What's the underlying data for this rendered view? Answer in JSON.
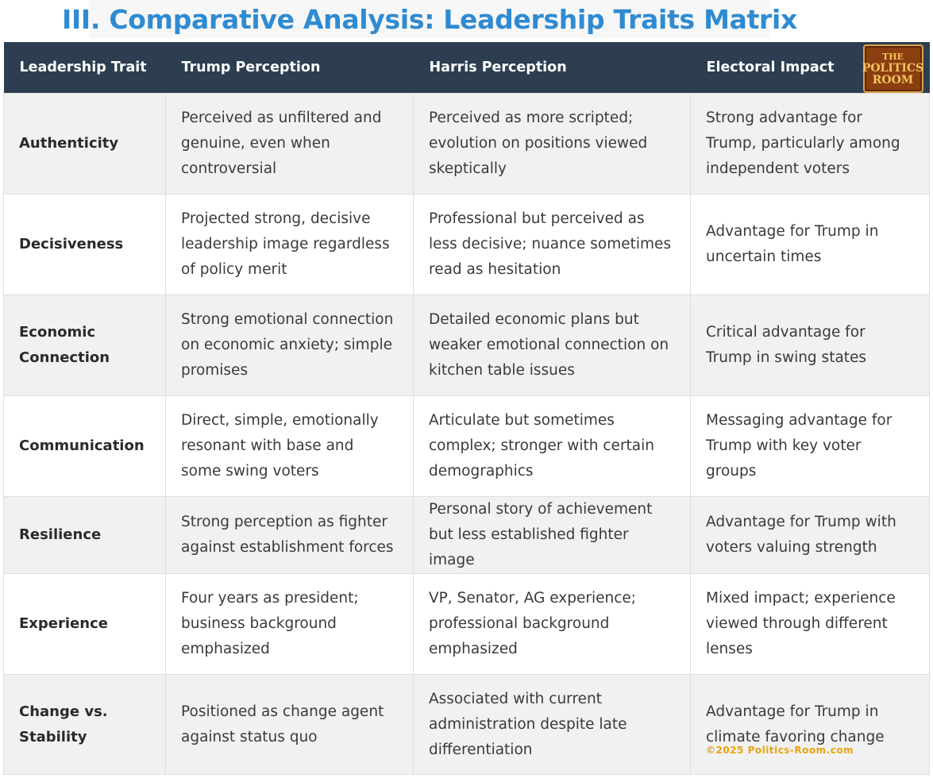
{
  "title": "III. Comparative Analysis: Leadership Traits Matrix",
  "headers": [
    "Leadership Trait",
    "Trump Perception",
    "Harris Perception",
    "Electoral Impact"
  ],
  "logo": {
    "line1": "THE",
    "line2": "POLITICS",
    "line3": "ROOM"
  },
  "rows": [
    {
      "trait": "Authenticity",
      "trump": "Perceived as unfiltered and genuine, even when controversial",
      "harris": "Perceived as more scripted; evolution on positions viewed skeptically",
      "impact": "Strong advantage for Trump, particularly among independent voters"
    },
    {
      "trait": "Decisiveness",
      "trump": "Projected strong, decisive leadership image regardless of policy merit",
      "harris": "Professional but perceived as less decisive; nuance sometimes read as hesitation",
      "impact": "Advantage for Trump in uncertain times"
    },
    {
      "trait": "Economic Connection",
      "trump": "Strong emotional connection on economic anxiety; simple promises",
      "harris": "Detailed economic plans but weaker emotional connection on kitchen table issues",
      "impact": "Critical advantage for Trump in swing states"
    },
    {
      "trait": "Communication",
      "trump": "Direct, simple, emotionally resonant with base and some swing voters",
      "harris": "Articulate but sometimes complex; stronger with certain demographics",
      "impact": "Messaging advantage for Trump with key voter groups"
    },
    {
      "trait": "Resilience",
      "trump": "Strong perception as fighter against establishment forces",
      "harris": "Personal story of achievement but less established fighter image",
      "impact": "Advantage for Trump with voters valuing strength"
    },
    {
      "trait": "Experience",
      "trump": "Four years as president; business background emphasized",
      "harris": "VP, Senator, AG experience; professional background emphasized",
      "impact": "Mixed impact; experience viewed through different lenses"
    },
    {
      "trait": "Change vs. Stability",
      "trump": "Positioned as change agent against status quo",
      "harris": "Associated with current administration despite late differentiation",
      "impact": "Advantage for Trump in climate favoring change"
    }
  ],
  "copyright": "©2025 Politics-Room.com"
}
